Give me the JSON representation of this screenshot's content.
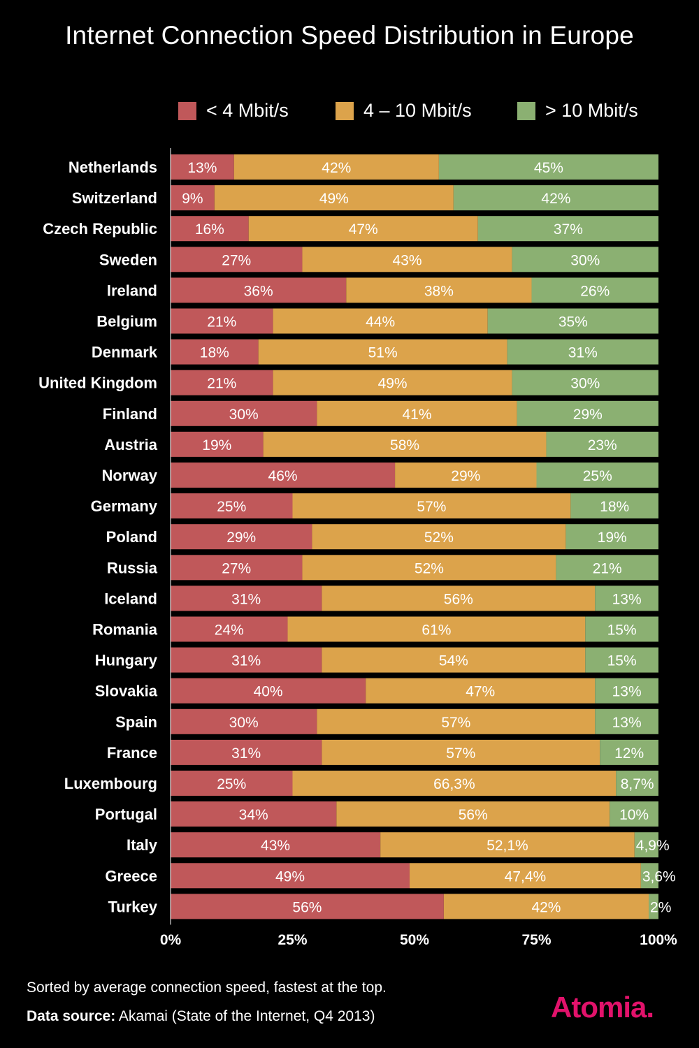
{
  "chart_data": {
    "type": "bar",
    "orientation": "horizontal-stacked-100",
    "title": "Internet Connection Speed Distribution in Europe",
    "categories": [
      "Netherlands",
      "Switzerland",
      "Czech Republic",
      "Sweden",
      "Ireland",
      "Belgium",
      "Denmark",
      "United Kingdom",
      "Finland",
      "Austria",
      "Norway",
      "Germany",
      "Poland",
      "Russia",
      "Iceland",
      "Romania",
      "Hungary",
      "Slovakia",
      "Spain",
      "France",
      "Luxembourg",
      "Portugal",
      "Italy",
      "Greece",
      "Turkey"
    ],
    "series": [
      {
        "name": "< 4 Mbit/s",
        "color": "#c0585a",
        "values": [
          13,
          9,
          16,
          27,
          36,
          21,
          18,
          21,
          30,
          19,
          46,
          25,
          29,
          27,
          31,
          24,
          31,
          40,
          30,
          31,
          25,
          34,
          43,
          49,
          56
        ],
        "labels": [
          "13%",
          "9%",
          "16%",
          "27%",
          "36%",
          "21%",
          "18%",
          "21%",
          "30%",
          "19%",
          "46%",
          "25%",
          "29%",
          "27%",
          "31%",
          "24%",
          "31%",
          "40%",
          "30%",
          "31%",
          "25%",
          "34%",
          "43%",
          "49%",
          "56%"
        ]
      },
      {
        "name": "4 – 10 Mbit/s",
        "color": "#dca34b",
        "values": [
          42,
          49,
          47,
          43,
          38,
          44,
          51,
          49,
          41,
          58,
          29,
          57,
          52,
          52,
          56,
          61,
          54,
          47,
          57,
          57,
          66.3,
          56,
          52.1,
          47.4,
          42
        ],
        "labels": [
          "42%",
          "49%",
          "47%",
          "43%",
          "38%",
          "44%",
          "51%",
          "49%",
          "41%",
          "58%",
          "29%",
          "57%",
          "52%",
          "52%",
          "56%",
          "61%",
          "54%",
          "47%",
          "57%",
          "57%",
          "66,3%",
          "56%",
          "52,1%",
          "47,4%",
          "42%"
        ]
      },
      {
        "name": "> 10 Mbit/s",
        "color": "#8bb072",
        "values": [
          45,
          42,
          37,
          30,
          26,
          35,
          31,
          30,
          29,
          23,
          25,
          18,
          19,
          21,
          13,
          15,
          15,
          13,
          13,
          12,
          8.7,
          10,
          4.9,
          3.6,
          2
        ],
        "labels": [
          "45%",
          "42%",
          "37%",
          "30%",
          "26%",
          "35%",
          "31%",
          "30%",
          "29%",
          "23%",
          "25%",
          "18%",
          "19%",
          "21%",
          "13%",
          "15%",
          "15%",
          "13%",
          "13%",
          "12%",
          "8,7%",
          "10%",
          "4,9%",
          "3,6%",
          "2%"
        ]
      }
    ],
    "xlim": [
      0,
      100
    ],
    "xticks": [
      0,
      25,
      50,
      75,
      100
    ],
    "xtick_labels": [
      "0%",
      "25%",
      "50%",
      "75%",
      "100%"
    ],
    "legend_position": "top-right"
  },
  "footer": {
    "note": "Sorted by average connection speed, fastest at the top.",
    "source_label": "Data source:",
    "source_text": "Akamai (State of the Internet, Q4 2013)"
  },
  "logo_text": "Atomia."
}
